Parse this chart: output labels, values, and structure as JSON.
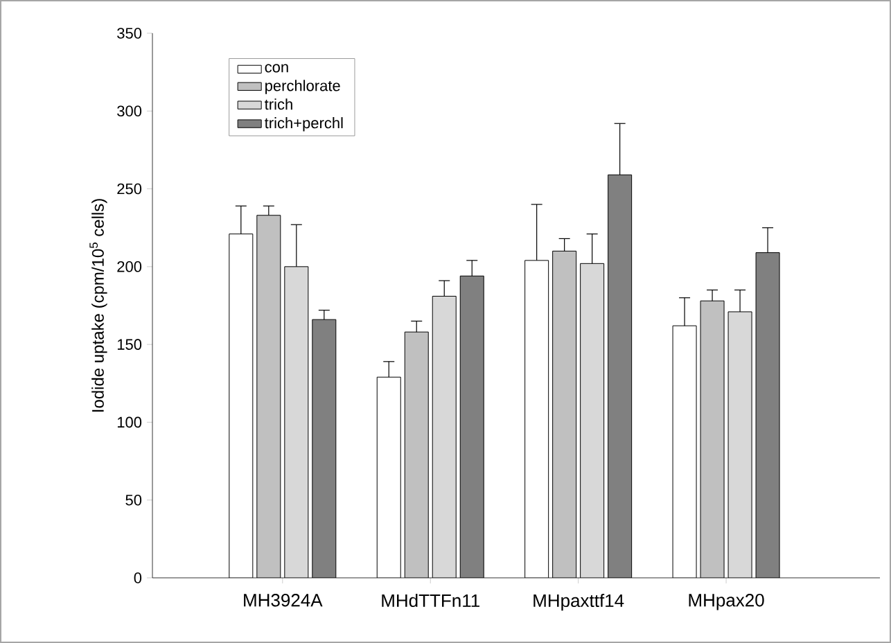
{
  "chart_data": {
    "type": "bar",
    "ylabel": "Iodide uptake (cpm/10$^{5}$ cells)",
    "categories": [
      "MH3924A",
      "MHdTTFn11",
      "MHpaxttf14",
      "MHpax20"
    ],
    "series": [
      {
        "name": "con",
        "color": "#ffffff",
        "values": [
          221,
          129,
          204,
          162
        ],
        "errors": [
          [
            221,
            239
          ],
          [
            129,
            139
          ],
          [
            204,
            240
          ],
          [
            162,
            180
          ]
        ]
      },
      {
        "name": "perchlorate",
        "color": "#c0c0c0",
        "values": [
          233,
          158,
          210,
          178
        ],
        "errors": [
          [
            233,
            239
          ],
          [
            158,
            165
          ],
          [
            210,
            218
          ],
          [
            178,
            185
          ]
        ]
      },
      {
        "name": "trich",
        "color": "#d8d8d8",
        "values": [
          200,
          181,
          202,
          171
        ],
        "errors": [
          [
            200,
            227
          ],
          [
            181,
            191
          ],
          [
            202,
            221
          ],
          [
            171,
            185
          ]
        ]
      },
      {
        "name": "trich+perchl",
        "color": "#808080",
        "values": [
          166,
          194,
          259,
          209
        ],
        "errors": [
          [
            166,
            172
          ],
          [
            194,
            204
          ],
          [
            259,
            292
          ],
          [
            209,
            225
          ]
        ]
      }
    ],
    "ylim": [
      0,
      350
    ],
    "yticks": [
      0,
      50,
      100,
      150,
      200,
      250,
      300,
      350
    ],
    "legend": "top left"
  }
}
